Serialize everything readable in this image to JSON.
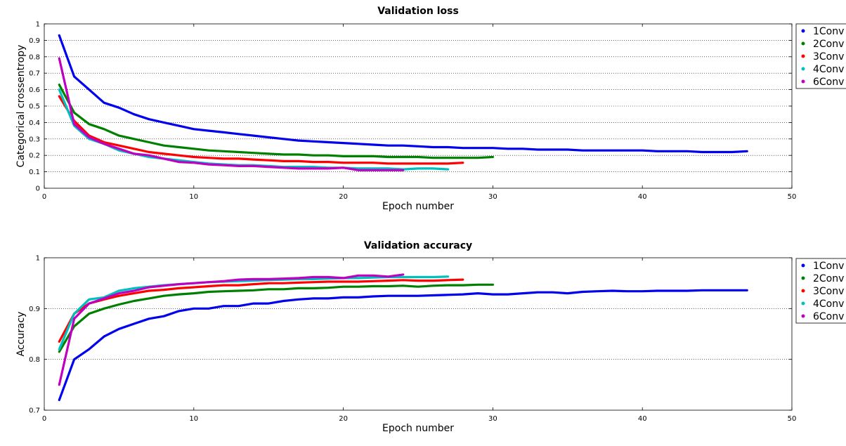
{
  "chart_data": [
    {
      "type": "line",
      "title": "Validation loss",
      "xlabel": "Epoch number",
      "ylabel": "Categorical crossentropy",
      "xlim": [
        0,
        50
      ],
      "ylim": [
        0,
        1
      ],
      "xticks": [
        "0",
        "10",
        "20",
        "30",
        "40",
        "50"
      ],
      "yticks": [
        "0",
        "0.1",
        "0.2",
        "0.3",
        "0.4",
        "0.5",
        "0.6",
        "0.7",
        "0.8",
        "0.9",
        "1"
      ],
      "grid": "horizontal dotted",
      "legend_position": "outside-right",
      "series": [
        {
          "name": "1Conv",
          "color": "#0000ee",
          "x": [
            1,
            2,
            3,
            4,
            5,
            6,
            7,
            8,
            9,
            10,
            11,
            12,
            13,
            14,
            15,
            16,
            17,
            18,
            19,
            20,
            21,
            22,
            23,
            24,
            25,
            26,
            27,
            28,
            29,
            30,
            31,
            32,
            33,
            34,
            35,
            36,
            37,
            38,
            39,
            40,
            41,
            42,
            43,
            44,
            45,
            46,
            47
          ],
          "values": [
            0.93,
            0.68,
            0.6,
            0.52,
            0.49,
            0.45,
            0.42,
            0.4,
            0.38,
            0.36,
            0.35,
            0.34,
            0.33,
            0.32,
            0.31,
            0.3,
            0.29,
            0.285,
            0.28,
            0.275,
            0.27,
            0.265,
            0.26,
            0.26,
            0.255,
            0.25,
            0.25,
            0.245,
            0.245,
            0.245,
            0.24,
            0.24,
            0.235,
            0.235,
            0.235,
            0.23,
            0.23,
            0.23,
            0.23,
            0.23,
            0.225,
            0.225,
            0.225,
            0.22,
            0.22,
            0.22,
            0.225
          ]
        },
        {
          "name": "2Conv",
          "color": "#008000",
          "x": [
            1,
            2,
            3,
            4,
            5,
            6,
            7,
            8,
            9,
            10,
            11,
            12,
            13,
            14,
            15,
            16,
            17,
            18,
            19,
            20,
            21,
            22,
            23,
            24,
            25,
            26,
            27,
            28,
            29,
            30
          ],
          "values": [
            0.63,
            0.46,
            0.39,
            0.36,
            0.32,
            0.3,
            0.28,
            0.26,
            0.25,
            0.24,
            0.23,
            0.225,
            0.22,
            0.215,
            0.21,
            0.205,
            0.205,
            0.2,
            0.2,
            0.195,
            0.195,
            0.195,
            0.19,
            0.19,
            0.19,
            0.185,
            0.185,
            0.185,
            0.185,
            0.19
          ]
        },
        {
          "name": "3Conv",
          "color": "#ff0000",
          "x": [
            1,
            2,
            3,
            4,
            5,
            6,
            7,
            8,
            9,
            10,
            11,
            12,
            13,
            14,
            15,
            16,
            17,
            18,
            19,
            20,
            21,
            22,
            23,
            24,
            25,
            26,
            27,
            28
          ],
          "values": [
            0.56,
            0.41,
            0.32,
            0.28,
            0.26,
            0.24,
            0.22,
            0.21,
            0.2,
            0.19,
            0.185,
            0.18,
            0.18,
            0.175,
            0.17,
            0.165,
            0.165,
            0.16,
            0.16,
            0.155,
            0.155,
            0.155,
            0.15,
            0.15,
            0.15,
            0.15,
            0.15,
            0.155
          ]
        },
        {
          "name": "4Conv",
          "color": "#00bfbf",
          "x": [
            1,
            2,
            3,
            4,
            5,
            6,
            7,
            8,
            9,
            10,
            11,
            12,
            13,
            14,
            15,
            16,
            17,
            18,
            19,
            20,
            21,
            22,
            23,
            24,
            25,
            26,
            27
          ],
          "values": [
            0.6,
            0.38,
            0.3,
            0.27,
            0.23,
            0.21,
            0.19,
            0.18,
            0.17,
            0.16,
            0.15,
            0.145,
            0.14,
            0.14,
            0.135,
            0.13,
            0.13,
            0.13,
            0.125,
            0.125,
            0.12,
            0.12,
            0.12,
            0.115,
            0.12,
            0.12,
            0.115
          ]
        },
        {
          "name": "6Conv",
          "color": "#bf00bf",
          "x": [
            1,
            2,
            3,
            4,
            5,
            6,
            7,
            8,
            9,
            10,
            11,
            12,
            13,
            14,
            15,
            16,
            17,
            18,
            19,
            20,
            21,
            22,
            23,
            24
          ],
          "values": [
            0.79,
            0.39,
            0.31,
            0.27,
            0.24,
            0.21,
            0.2,
            0.18,
            0.16,
            0.155,
            0.145,
            0.14,
            0.135,
            0.135,
            0.13,
            0.125,
            0.12,
            0.12,
            0.12,
            0.125,
            0.11,
            0.11,
            0.11,
            0.11
          ]
        }
      ]
    },
    {
      "type": "line",
      "title": "Validation accuracy",
      "xlabel": "Epoch number",
      "ylabel": "Accuracy",
      "xlim": [
        0,
        50
      ],
      "ylim": [
        0.7,
        1
      ],
      "xticks": [
        "0",
        "10",
        "20",
        "30",
        "40",
        "50"
      ],
      "yticks": [
        "0.7",
        "0.8",
        "0.9",
        "1"
      ],
      "grid": "horizontal dotted",
      "legend_position": "outside-right",
      "series": [
        {
          "name": "1Conv",
          "color": "#0000ee",
          "x": [
            1,
            2,
            3,
            4,
            5,
            6,
            7,
            8,
            9,
            10,
            11,
            12,
            13,
            14,
            15,
            16,
            17,
            18,
            19,
            20,
            21,
            22,
            23,
            24,
            25,
            26,
            27,
            28,
            29,
            30,
            31,
            32,
            33,
            34,
            35,
            36,
            37,
            38,
            39,
            40,
            41,
            42,
            43,
            44,
            45,
            46,
            47
          ],
          "values": [
            0.72,
            0.8,
            0.82,
            0.845,
            0.86,
            0.87,
            0.88,
            0.885,
            0.895,
            0.9,
            0.9,
            0.905,
            0.905,
            0.91,
            0.91,
            0.915,
            0.918,
            0.92,
            0.92,
            0.922,
            0.922,
            0.924,
            0.925,
            0.925,
            0.925,
            0.926,
            0.927,
            0.928,
            0.93,
            0.928,
            0.928,
            0.93,
            0.932,
            0.932,
            0.93,
            0.933,
            0.934,
            0.935,
            0.934,
            0.934,
            0.935,
            0.935,
            0.935,
            0.936,
            0.936,
            0.936,
            0.936
          ]
        },
        {
          "name": "2Conv",
          "color": "#008000",
          "x": [
            1,
            2,
            3,
            4,
            5,
            6,
            7,
            8,
            9,
            10,
            11,
            12,
            13,
            14,
            15,
            16,
            17,
            18,
            19,
            20,
            21,
            22,
            23,
            24,
            25,
            26,
            27,
            28,
            29,
            30
          ],
          "values": [
            0.815,
            0.865,
            0.89,
            0.9,
            0.908,
            0.915,
            0.92,
            0.925,
            0.928,
            0.93,
            0.933,
            0.934,
            0.935,
            0.936,
            0.938,
            0.938,
            0.94,
            0.94,
            0.941,
            0.943,
            0.943,
            0.944,
            0.944,
            0.945,
            0.943,
            0.945,
            0.946,
            0.946,
            0.947,
            0.947
          ]
        },
        {
          "name": "3Conv",
          "color": "#ff0000",
          "x": [
            1,
            2,
            3,
            4,
            5,
            6,
            7,
            8,
            9,
            10,
            11,
            12,
            13,
            14,
            15,
            16,
            17,
            18,
            19,
            20,
            21,
            22,
            23,
            24,
            25,
            26,
            27,
            28
          ],
          "values": [
            0.835,
            0.89,
            0.91,
            0.918,
            0.925,
            0.93,
            0.935,
            0.937,
            0.94,
            0.942,
            0.944,
            0.946,
            0.946,
            0.948,
            0.95,
            0.95,
            0.951,
            0.952,
            0.953,
            0.953,
            0.953,
            0.954,
            0.955,
            0.956,
            0.955,
            0.955,
            0.956,
            0.957
          ]
        },
        {
          "name": "4Conv",
          "color": "#00bfbf",
          "x": [
            1,
            2,
            3,
            4,
            5,
            6,
            7,
            8,
            9,
            10,
            11,
            12,
            13,
            14,
            15,
            16,
            17,
            18,
            19,
            20,
            21,
            22,
            23,
            24,
            25,
            26,
            27
          ],
          "values": [
            0.82,
            0.89,
            0.918,
            0.922,
            0.935,
            0.94,
            0.943,
            0.946,
            0.948,
            0.95,
            0.952,
            0.953,
            0.954,
            0.955,
            0.956,
            0.957,
            0.958,
            0.958,
            0.959,
            0.96,
            0.96,
            0.961,
            0.962,
            0.962,
            0.962,
            0.962,
            0.963
          ]
        },
        {
          "name": "6Conv",
          "color": "#bf00bf",
          "x": [
            1,
            2,
            3,
            4,
            5,
            6,
            7,
            8,
            9,
            10,
            11,
            12,
            13,
            14,
            15,
            16,
            17,
            18,
            19,
            20,
            21,
            22,
            23,
            24
          ],
          "values": [
            0.75,
            0.88,
            0.91,
            0.92,
            0.93,
            0.935,
            0.942,
            0.945,
            0.948,
            0.95,
            0.952,
            0.954,
            0.957,
            0.958,
            0.958,
            0.959,
            0.96,
            0.962,
            0.962,
            0.96,
            0.965,
            0.965,
            0.963,
            0.967
          ]
        }
      ]
    }
  ]
}
